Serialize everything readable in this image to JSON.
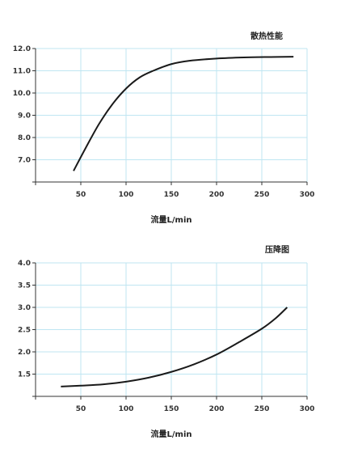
{
  "chart_data": [
    {
      "type": "line",
      "title": "散热性能",
      "xlabel": "流量L/min",
      "ylabel": "",
      "xlim": [
        0,
        300
      ],
      "ylim": [
        6.0,
        12.0
      ],
      "x_ticks": [
        50,
        100,
        150,
        200,
        250,
        300
      ],
      "y_ticks": [
        7.0,
        8.0,
        9.0,
        10.0,
        11.0,
        12.0
      ],
      "x_tick_labels": [
        "50",
        "100",
        "150",
        "200",
        "250",
        "300"
      ],
      "y_tick_labels": [
        "7.0",
        "8.0",
        "9.0",
        "10.0",
        "11.0",
        "12.0"
      ],
      "grid": true,
      "series": [
        {
          "x": [
            42,
            55,
            70,
            85,
            100,
            115,
            130,
            150,
            170,
            200,
            230,
            260,
            285
          ],
          "y": [
            6.5,
            7.5,
            8.6,
            9.5,
            10.2,
            10.7,
            11.0,
            11.3,
            11.45,
            11.55,
            11.6,
            11.62,
            11.63
          ]
        }
      ]
    },
    {
      "type": "line",
      "title": "压降图",
      "xlabel": "流量L/min",
      "ylabel": "",
      "xlim": [
        0,
        300
      ],
      "ylim": [
        1.0,
        4.0
      ],
      "x_ticks": [
        50,
        100,
        150,
        200,
        250,
        300
      ],
      "y_ticks": [
        1.5,
        2.0,
        2.5,
        3.0,
        3.5,
        4.0
      ],
      "x_tick_labels": [
        "50",
        "100",
        "150",
        "200",
        "250",
        "300"
      ],
      "y_tick_labels": [
        "1.5",
        "2.0",
        "2.5",
        "3.0",
        "3.5",
        "4.0"
      ],
      "grid": true,
      "series": [
        {
          "x": [
            28,
            50,
            75,
            100,
            125,
            150,
            175,
            200,
            225,
            250,
            265,
            278
          ],
          "y": [
            1.22,
            1.24,
            1.27,
            1.33,
            1.42,
            1.55,
            1.72,
            1.94,
            2.22,
            2.52,
            2.75,
            3.0
          ]
        }
      ]
    }
  ]
}
